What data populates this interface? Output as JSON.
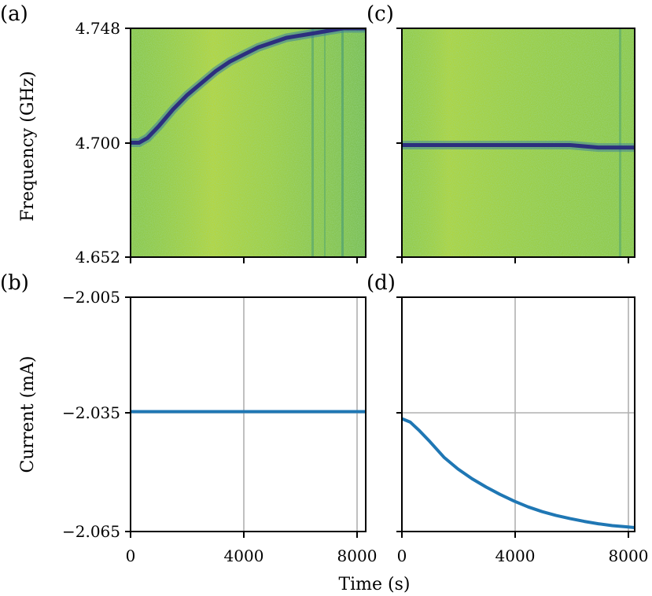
{
  "colors": {
    "heatmap_low": "#2b3f8a",
    "heatmap_mid": "#5fb55a",
    "heatmap_high": "#d2e032",
    "line": "#1f77b4",
    "grid": "#b0b0b0"
  },
  "chart_data": [
    {
      "panel": "(a)",
      "type": "heatmap",
      "xlim": [
        0,
        8300
      ],
      "ylim": [
        4.652,
        4.748
      ],
      "yticks": [
        "4.652",
        "4.700",
        "4.748"
      ],
      "ylabel": "Frequency (GHz)",
      "resonance_freq_GHz": {
        "t": [
          0,
          300,
          600,
          1000,
          1500,
          2000,
          2500,
          3000,
          3500,
          4000,
          4500,
          5000,
          5500,
          6000,
          6500,
          7000,
          7500,
          8000,
          8300
        ],
        "f": [
          4.7,
          4.7,
          4.702,
          4.707,
          4.714,
          4.72,
          4.725,
          4.73,
          4.734,
          4.737,
          4.74,
          4.742,
          4.744,
          4.745,
          4.746,
          4.747,
          4.748,
          4.748,
          4.748
        ]
      }
    },
    {
      "panel": "(c)",
      "type": "heatmap",
      "xlim": [
        0,
        8300
      ],
      "ylim": [
        4.652,
        4.748
      ],
      "resonance_freq_GHz": {
        "t": [
          0,
          1000,
          2000,
          3000,
          4000,
          5000,
          6000,
          7000,
          8000,
          8300
        ],
        "f": [
          4.699,
          4.699,
          4.699,
          4.699,
          4.699,
          4.699,
          4.699,
          4.698,
          4.698,
          4.698
        ]
      }
    },
    {
      "panel": "(b)",
      "type": "line",
      "xlim": [
        0,
        8300
      ],
      "ylim": [
        -2.065,
        -2.005
      ],
      "yticks": [
        "−2.005",
        "−2.035",
        "−2.065"
      ],
      "xticks": [
        "0",
        "4000",
        "8000"
      ],
      "ylabel": "Current (mA)",
      "grid": true,
      "x": [
        0,
        8300
      ],
      "y": [
        -2.0343,
        -2.0343
      ]
    },
    {
      "panel": "(d)",
      "type": "line",
      "xlim": [
        0,
        8300
      ],
      "ylim": [
        -2.065,
        -2.005
      ],
      "xticks": [
        "0",
        "4000",
        "8000"
      ],
      "grid": true,
      "x": [
        0,
        300,
        600,
        1000,
        1500,
        2000,
        2500,
        3000,
        3500,
        4000,
        4500,
        5000,
        5500,
        6000,
        6500,
        7000,
        7500,
        8000,
        8300
      ],
      "y": [
        -2.0361,
        -2.037,
        -2.039,
        -2.042,
        -2.046,
        -2.049,
        -2.0515,
        -2.0536,
        -2.0555,
        -2.0572,
        -2.0587,
        -2.0599,
        -2.0609,
        -2.0617,
        -2.0624,
        -2.063,
        -2.0635,
        -2.0638,
        -2.064
      ]
    }
  ],
  "shared": {
    "xlabel": "Time (s)"
  }
}
